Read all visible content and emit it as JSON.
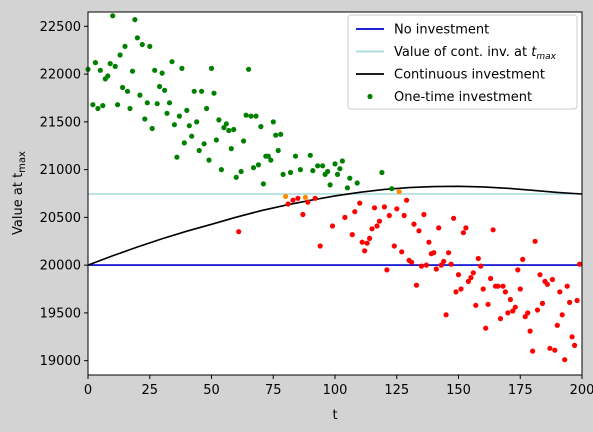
{
  "chart_data": {
    "type": "scatter",
    "xlabel": "t",
    "ylabel": "Value at t_max",
    "xlim": [
      0,
      200
    ],
    "ylim": [
      18850,
      22650
    ],
    "xticks": [
      0,
      25,
      50,
      75,
      100,
      125,
      150,
      175,
      200
    ],
    "yticks": [
      19000,
      19500,
      20000,
      20500,
      21000,
      21500,
      22000,
      22500
    ],
    "grid": false,
    "legend_position": "top-right",
    "legend": [
      {
        "label": "No investment",
        "marker": "line",
        "color": "#0000cd"
      },
      {
        "label": "Value of cont. inv. at ",
        "sub": "max",
        "marker": "line",
        "color": "#a8dadc"
      },
      {
        "label": "Continuous investment",
        "marker": "line",
        "color": "#000000"
      },
      {
        "label": "One-time investment",
        "marker": "dot",
        "color": "#008000"
      }
    ],
    "lines": [
      {
        "name": "No investment",
        "color": "#0000cd",
        "x": [
          0,
          200
        ],
        "y": [
          20000,
          20000
        ]
      },
      {
        "name": "Value of cont. inv. at t_max",
        "color": "#a8dadc",
        "x": [
          0,
          200
        ],
        "y": [
          20745,
          20745
        ]
      },
      {
        "name": "Continuous investment",
        "color": "#000000",
        "x": [
          0,
          10,
          20,
          30,
          40,
          50,
          60,
          70,
          80,
          90,
          100,
          110,
          120,
          130,
          140,
          150,
          160,
          170,
          180,
          190,
          200
        ],
        "y": [
          20000,
          20098,
          20190,
          20276,
          20355,
          20428,
          20502,
          20570,
          20627,
          20679,
          20725,
          20763,
          20793,
          20812,
          20822,
          20825,
          20819,
          20804,
          20784,
          20762,
          20745
        ]
      }
    ],
    "scatter_colors": {
      "above": "#008000",
      "near": "#ff8c00",
      "below": "#ff0000"
    },
    "points": [
      [
        0,
        22050
      ],
      [
        2,
        21680
      ],
      [
        3,
        22120
      ],
      [
        4,
        21640
      ],
      [
        5,
        22040
      ],
      [
        6,
        21670
      ],
      [
        7,
        21950
      ],
      [
        8,
        21980
      ],
      [
        9,
        22110
      ],
      [
        10,
        22610
      ],
      [
        11,
        22080
      ],
      [
        12,
        21680
      ],
      [
        13,
        22200
      ],
      [
        14,
        21860
      ],
      [
        15,
        22290
      ],
      [
        16,
        21820
      ],
      [
        17,
        21640
      ],
      [
        18,
        22030
      ],
      [
        19,
        22570
      ],
      [
        20,
        22380
      ],
      [
        21,
        21780
      ],
      [
        22,
        22310
      ],
      [
        23,
        21530
      ],
      [
        24,
        21700
      ],
      [
        25,
        22290
      ],
      [
        26,
        21430
      ],
      [
        27,
        22040
      ],
      [
        28,
        21690
      ],
      [
        29,
        21870
      ],
      [
        30,
        22010
      ],
      [
        31,
        21830
      ],
      [
        32,
        21590
      ],
      [
        33,
        21700
      ],
      [
        34,
        22130
      ],
      [
        35,
        21470
      ],
      [
        36,
        21130
      ],
      [
        37,
        21560
      ],
      [
        38,
        22060
      ],
      [
        39,
        21280
      ],
      [
        40,
        21620
      ],
      [
        41,
        21460
      ],
      [
        42,
        21350
      ],
      [
        43,
        21820
      ],
      [
        44,
        21500
      ],
      [
        45,
        21200
      ],
      [
        46,
        21820
      ],
      [
        47,
        21270
      ],
      [
        48,
        21640
      ],
      [
        49,
        21100
      ],
      [
        50,
        22060
      ],
      [
        51,
        21800
      ],
      [
        52,
        21310
      ],
      [
        53,
        21520
      ],
      [
        54,
        21000
      ],
      [
        55,
        21440
      ],
      [
        56,
        21480
      ],
      [
        57,
        21410
      ],
      [
        58,
        21220
      ],
      [
        59,
        21420
      ],
      [
        60,
        20920
      ],
      [
        61,
        20350
      ],
      [
        62,
        20980
      ],
      [
        63,
        21300
      ],
      [
        64,
        21570
      ],
      [
        65,
        22050
      ],
      [
        66,
        21560
      ],
      [
        67,
        21020
      ],
      [
        68,
        21560
      ],
      [
        69,
        21050
      ],
      [
        70,
        21450
      ],
      [
        71,
        20850
      ],
      [
        72,
        21140
      ],
      [
        73,
        21140
      ],
      [
        74,
        21100
      ],
      [
        75,
        21500
      ],
      [
        76,
        21360
      ],
      [
        77,
        21200
      ],
      [
        78,
        21370
      ],
      [
        79,
        20950
      ],
      [
        80,
        20720
      ],
      [
        81,
        20640
      ],
      [
        82,
        20970
      ],
      [
        83,
        20680
      ],
      [
        84,
        21140
      ],
      [
        85,
        20700
      ],
      [
        86,
        21000
      ],
      [
        87,
        20530
      ],
      [
        88,
        20710
      ],
      [
        89,
        20660
      ],
      [
        90,
        21150
      ],
      [
        91,
        20990
      ],
      [
        92,
        20700
      ],
      [
        93,
        21040
      ],
      [
        94,
        20200
      ],
      [
        95,
        21040
      ],
      [
        96,
        20950
      ],
      [
        97,
        20980
      ],
      [
        98,
        20840
      ],
      [
        99,
        20410
      ],
      [
        100,
        21060
      ],
      [
        101,
        20950
      ],
      [
        102,
        21010
      ],
      [
        103,
        21090
      ],
      [
        104,
        20500
      ],
      [
        105,
        20810
      ],
      [
        106,
        20910
      ],
      [
        107,
        20320
      ],
      [
        108,
        20560
      ],
      [
        109,
        20860
      ],
      [
        110,
        20650
      ],
      [
        111,
        20240
      ],
      [
        112,
        20150
      ],
      [
        113,
        20230
      ],
      [
        114,
        20280
      ],
      [
        115,
        20380
      ],
      [
        116,
        20600
      ],
      [
        117,
        20410
      ],
      [
        118,
        20460
      ],
      [
        119,
        20970
      ],
      [
        120,
        20610
      ],
      [
        121,
        19950
      ],
      [
        122,
        20520
      ],
      [
        123,
        20800
      ],
      [
        124,
        20200
      ],
      [
        125,
        20590
      ],
      [
        126,
        20770
      ],
      [
        127,
        20140
      ],
      [
        128,
        20520
      ],
      [
        129,
        20680
      ],
      [
        130,
        20050
      ],
      [
        131,
        20030
      ],
      [
        132,
        20430
      ],
      [
        133,
        19790
      ],
      [
        134,
        20360
      ],
      [
        135,
        19990
      ],
      [
        136,
        20530
      ],
      [
        137,
        20000
      ],
      [
        138,
        20240
      ],
      [
        139,
        20120
      ],
      [
        140,
        20130
      ],
      [
        141,
        19960
      ],
      [
        142,
        20390
      ],
      [
        143,
        20000
      ],
      [
        144,
        20040
      ],
      [
        145,
        19480
      ],
      [
        146,
        20130
      ],
      [
        147,
        20010
      ],
      [
        148,
        20490
      ],
      [
        149,
        19720
      ],
      [
        150,
        19900
      ],
      [
        151,
        19750
      ],
      [
        152,
        20340
      ],
      [
        153,
        20390
      ],
      [
        154,
        19830
      ],
      [
        155,
        19870
      ],
      [
        156,
        19920
      ],
      [
        157,
        19580
      ],
      [
        158,
        20070
      ],
      [
        159,
        19990
      ],
      [
        160,
        19750
      ],
      [
        161,
        19340
      ],
      [
        162,
        19590
      ],
      [
        163,
        19860
      ],
      [
        164,
        20370
      ],
      [
        165,
        19780
      ],
      [
        166,
        19780
      ],
      [
        167,
        19440
      ],
      [
        168,
        19780
      ],
      [
        169,
        19720
      ],
      [
        170,
        19500
      ],
      [
        171,
        19640
      ],
      [
        172,
        19520
      ],
      [
        173,
        19560
      ],
      [
        174,
        19950
      ],
      [
        175,
        19750
      ],
      [
        176,
        20060
      ],
      [
        177,
        19460
      ],
      [
        178,
        19500
      ],
      [
        179,
        19310
      ],
      [
        180,
        19100
      ],
      [
        181,
        20250
      ],
      [
        182,
        19530
      ],
      [
        183,
        19900
      ],
      [
        184,
        19600
      ],
      [
        185,
        19830
      ],
      [
        186,
        19800
      ],
      [
        187,
        19130
      ],
      [
        188,
        19850
      ],
      [
        189,
        19110
      ],
      [
        190,
        19370
      ],
      [
        191,
        19720
      ],
      [
        192,
        19480
      ],
      [
        193,
        19010
      ],
      [
        194,
        19780
      ],
      [
        195,
        19610
      ],
      [
        196,
        19250
      ],
      [
        197,
        19160
      ],
      [
        198,
        19630
      ],
      [
        199,
        20010
      ]
    ]
  }
}
